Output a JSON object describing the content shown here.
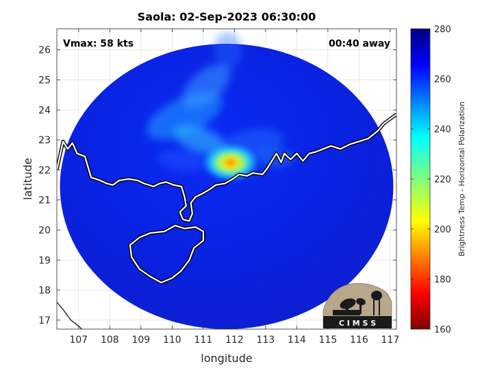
{
  "chart_data": {
    "type": "heatmap",
    "title": "Saola: 02-Sep-2023 06:30:00",
    "xlabel": "longitude",
    "ylabel": "latitude",
    "xlim": [
      106.3,
      117.2
    ],
    "ylim": [
      16.7,
      26.7
    ],
    "xticks": [
      107,
      108,
      109,
      110,
      111,
      112,
      113,
      114,
      115,
      116,
      117
    ],
    "yticks": [
      17,
      18,
      19,
      20,
      21,
      22,
      23,
      24,
      25,
      26
    ],
    "grid": true,
    "annotations": {
      "vmax": "Vmax: 58 kts",
      "away": "00:40 away"
    },
    "swath": {
      "center_lon": 111.75,
      "center_lat": 21.45,
      "radius_lon": 5.35,
      "radius_lat": 4.75
    },
    "storm_center": {
      "lon": 112.05,
      "lat": 22.15
    },
    "colorbar": {
      "label": "Brightness Temp - Horizontal Polarization",
      "min": 160,
      "max": 280,
      "ticks": [
        160,
        180,
        200,
        220,
        240,
        260,
        280
      ],
      "colormap": "jet"
    },
    "logo_text": "C I M S S"
  }
}
